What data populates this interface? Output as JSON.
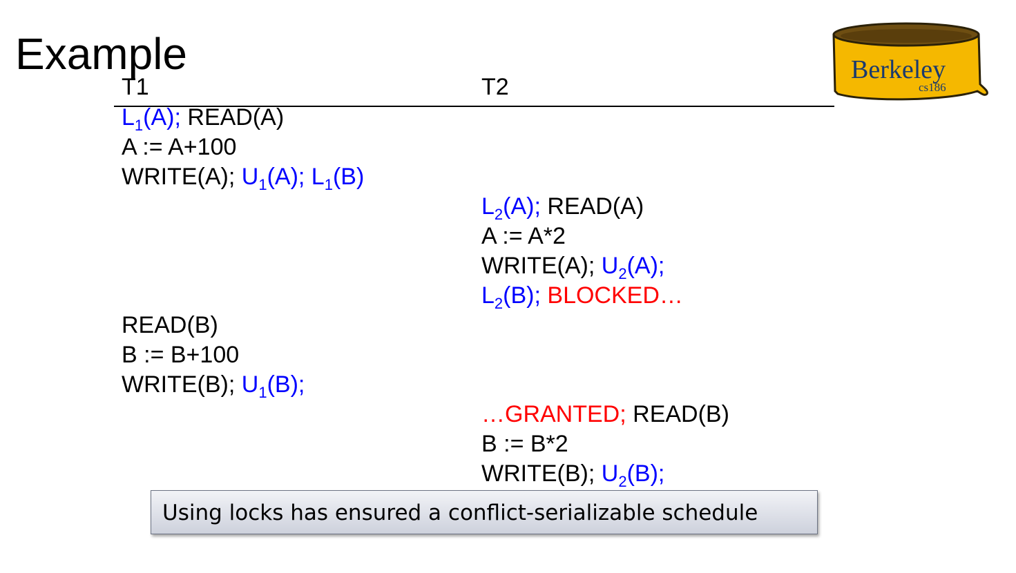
{
  "title": "Example",
  "columns": {
    "t1": "T1",
    "t2": "T2"
  },
  "logo": {
    "text": "Berkeley",
    "sub": "cs186",
    "fill": "#f5b800",
    "rim": "#7a5a10"
  },
  "colors": {
    "lock_ops": "#0000ff",
    "status": "#ff0000",
    "text": "#000000"
  },
  "t1": {
    "r1": {
      "lock_letter": "L",
      "lock_sub": "1",
      "lock_rest": "(A);",
      "rest": " READ(A)"
    },
    "r2": {
      "text": "A := A+100"
    },
    "r3": {
      "pre": "WRITE(A); ",
      "u_letter": "U",
      "u_sub": "1",
      "u_rest": "(A); ",
      "l_letter": "L",
      "l_sub": "1",
      "l_rest": "(B)"
    },
    "r8": {
      "text": "READ(B)"
    },
    "r9": {
      "text": "B := B+100"
    },
    "r10": {
      "pre": "WRITE(B); ",
      "u_letter": "U",
      "u_sub": "1",
      "u_rest": "(B);"
    }
  },
  "t2": {
    "r4": {
      "lock_letter": "L",
      "lock_sub": "2",
      "lock_rest": "(A);",
      "rest": " READ(A)"
    },
    "r5": {
      "text": "A := A*2"
    },
    "r6": {
      "pre": "WRITE(A); ",
      "u_letter": "U",
      "u_sub": "2",
      "u_rest": "(A);"
    },
    "r7": {
      "l_letter": "L",
      "l_sub": "2",
      "l_rest": "(B); ",
      "status": "BLOCKED…"
    },
    "r11": {
      "status": "…GRANTED;",
      "rest": " READ(B)"
    },
    "r12": {
      "text": "B := B*2"
    },
    "r13": {
      "pre": "WRITE(B); ",
      "u_letter": "U",
      "u_sub": "2",
      "u_rest": "(B);"
    }
  },
  "callout": "Using locks has ensured a conflict-serializable schedule"
}
